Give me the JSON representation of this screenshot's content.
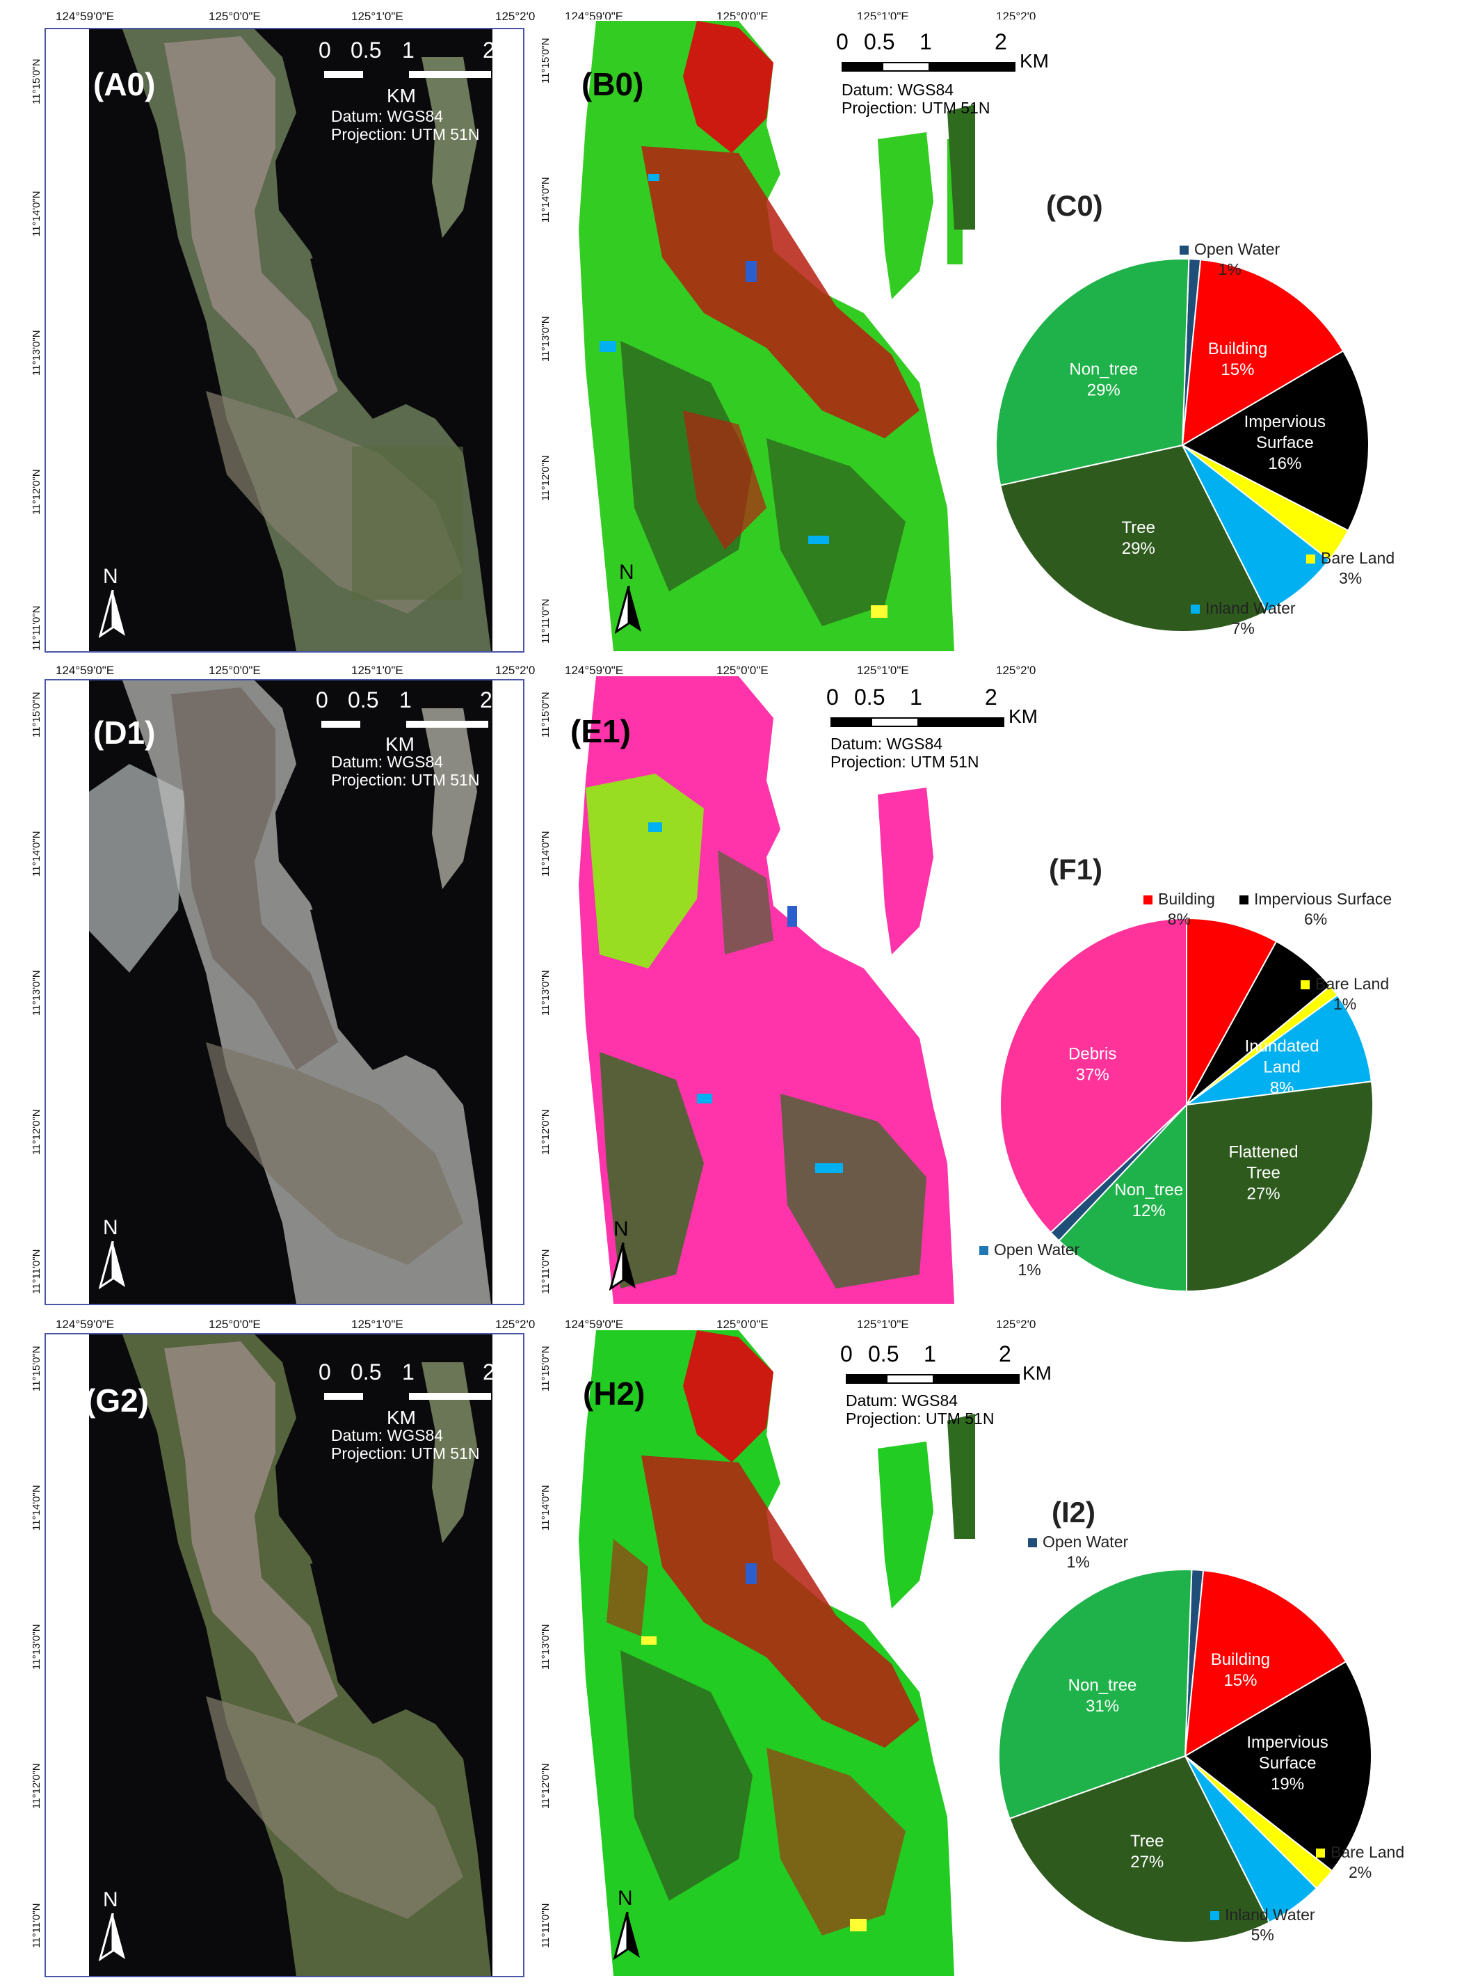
{
  "coordinates": {
    "lon_ticks": [
      "124°59'0\"E",
      "125°0'0\"E",
      "125°1'0\"E",
      "125°2'0"
    ],
    "lat_ticks_row1": [
      "11°15'0\"N",
      "11°14'0\"N",
      "11°13'0\"N",
      "11°12'0\"N",
      "11°11'0\"N"
    ],
    "lat_ticks_row3": [
      "11°15'0\"N",
      "11°14'0\"N",
      "11°13'0\"N",
      "11°12'0\"N",
      "11°11'0\"N"
    ],
    "lat_ticks_row3_left": [
      "11°15'0\"N",
      "11°14'0\"N",
      "11°13'0\"N",
      "11°12'0\"N",
      "11°11'0\"N"
    ]
  },
  "map_text": {
    "km": "KM",
    "sb_0": "0",
    "sb_05": "0.5",
    "sb_1": "1",
    "sb_2": "2",
    "datum": "Datum: WGS84",
    "projection": "Projection: UTM 51N",
    "north": "N"
  },
  "rows": [
    {
      "sat_label": "(A0)",
      "class_label": "(B0)",
      "pie_label": "(C0)"
    },
    {
      "sat_label": "(D1)",
      "class_label": "(E1)",
      "pie_label": "(F1)"
    },
    {
      "sat_label": "(G2)",
      "class_label": "(H2)",
      "pie_label": "(I2)"
    }
  ],
  "colors": {
    "building": "#ff0000",
    "impervious": "#000000",
    "bare_land": "#ffff00",
    "inland_water": "#00b0f0",
    "tree": "#2e5a1e",
    "non_tree": "#1fb24a",
    "open_water": "#1f4e79",
    "debris": "#ff3399",
    "inundated": "#00b0f0",
    "flattened": "#2e5a1e",
    "bright_green": "#33dd22"
  },
  "chart_data": [
    {
      "type": "pie",
      "title": "(C0)",
      "slices": [
        {
          "label": "Open Water",
          "value": 1,
          "pct": "1%",
          "color": "#1f4e79"
        },
        {
          "label": "Building",
          "value": 15,
          "pct": "15%",
          "color": "#ff0000"
        },
        {
          "label": "Impervious Surface",
          "value": 16,
          "pct": "16%",
          "color": "#000000"
        },
        {
          "label": "Bare Land",
          "value": 3,
          "pct": "3%",
          "color": "#ffff00"
        },
        {
          "label": "Inland Water",
          "value": 7,
          "pct": "7%",
          "color": "#00b0f0"
        },
        {
          "label": "Tree",
          "value": 29,
          "pct": "29%",
          "color": "#2e5a1e"
        },
        {
          "label": "Non_tree",
          "value": 29,
          "pct": "29%",
          "color": "#1fb24a"
        }
      ]
    },
    {
      "type": "pie",
      "title": "(F1)",
      "slices": [
        {
          "label": "Building",
          "value": 8,
          "pct": "8%",
          "color": "#ff0000"
        },
        {
          "label": "Impervious Surface",
          "value": 6,
          "pct": "6%",
          "color": "#000000"
        },
        {
          "label": "Bare Land",
          "value": 1,
          "pct": "1%",
          "color": "#ffff00"
        },
        {
          "label": "Inundated Land",
          "value": 8,
          "pct": "8%",
          "color": "#00b0f0"
        },
        {
          "label": "Flattened Tree",
          "value": 27,
          "pct": "27%",
          "color": "#2e5a1e"
        },
        {
          "label": "Non_tree",
          "value": 12,
          "pct": "12%",
          "color": "#1fb24a"
        },
        {
          "label": "Open Water",
          "value": 1,
          "pct": "1%",
          "color": "#1f4e79"
        },
        {
          "label": "Debris",
          "value": 37,
          "pct": "37%",
          "color": "#ff3399"
        }
      ]
    },
    {
      "type": "pie",
      "title": "(I2)",
      "slices": [
        {
          "label": "Open Water",
          "value": 1,
          "pct": "1%",
          "color": "#1f4e79"
        },
        {
          "label": "Building",
          "value": 15,
          "pct": "15%",
          "color": "#ff0000"
        },
        {
          "label": "Impervious Surface",
          "value": 19,
          "pct": "19%",
          "color": "#000000"
        },
        {
          "label": "Bare Land",
          "value": 2,
          "pct": "2%",
          "color": "#ffff00"
        },
        {
          "label": "Inland Water",
          "value": 5,
          "pct": "5%",
          "color": "#00b0f0"
        },
        {
          "label": "Tree",
          "value": 27,
          "pct": "27%",
          "color": "#2e5a1e"
        },
        {
          "label": "Non_tree",
          "value": 31,
          "pct": "31%",
          "color": "#1fb24a"
        }
      ]
    }
  ]
}
